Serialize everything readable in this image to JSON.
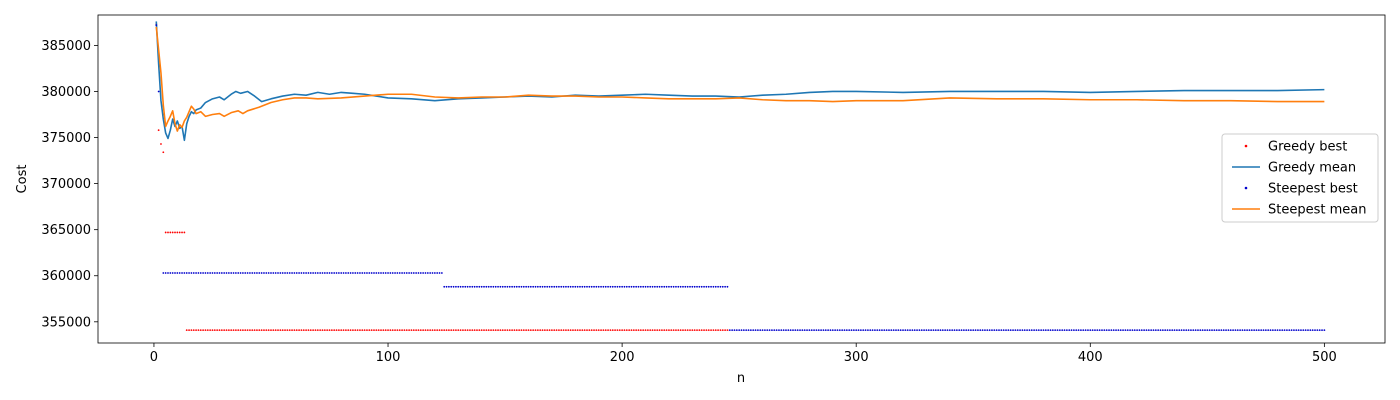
{
  "chart_data": {
    "type": "line",
    "title": "",
    "xlabel": "n",
    "ylabel": "Cost",
    "xlim": [
      -23.9,
      525.9
    ],
    "ylim": [
      352700,
      388300
    ],
    "xticks": [
      0,
      100,
      200,
      300,
      400,
      500
    ],
    "yticks": [
      355000,
      360000,
      365000,
      370000,
      375000,
      380000,
      385000
    ],
    "grid": false,
    "legend_position": "center-right",
    "series": [
      {
        "name": "Greedy best",
        "kind": "points",
        "color": "#ff0000",
        "segments": [
          {
            "x": [
              1,
              1
            ],
            "y": [
              387300,
              387300
            ]
          },
          {
            "x": [
              2,
              2
            ],
            "y": [
              375800,
              375800
            ]
          },
          {
            "x": [
              3,
              3
            ],
            "y": [
              374300,
              374300
            ]
          },
          {
            "x": [
              4,
              4
            ],
            "y": [
              373400,
              373400
            ]
          },
          {
            "x": [
              5,
              13
            ],
            "y": [
              364700,
              364700
            ]
          },
          {
            "x": [
              14,
              245
            ],
            "y": [
              354100,
              354100
            ]
          }
        ]
      },
      {
        "name": "Greedy mean",
        "kind": "line",
        "color": "#1f77b4",
        "points": [
          [
            1,
            387600
          ],
          [
            2,
            383000
          ],
          [
            3,
            379000
          ],
          [
            4,
            377000
          ],
          [
            5,
            375500
          ],
          [
            6,
            374900
          ],
          [
            7,
            375800
          ],
          [
            8,
            377000
          ],
          [
            9,
            376200
          ],
          [
            10,
            376800
          ],
          [
            11,
            376000
          ],
          [
            12,
            376200
          ],
          [
            13,
            374700
          ],
          [
            14,
            376500
          ],
          [
            15,
            377300
          ],
          [
            16,
            377800
          ],
          [
            17,
            377600
          ],
          [
            18,
            378000
          ],
          [
            20,
            378200
          ],
          [
            22,
            378800
          ],
          [
            25,
            379200
          ],
          [
            28,
            379400
          ],
          [
            30,
            379100
          ],
          [
            33,
            379700
          ],
          [
            35,
            380000
          ],
          [
            37,
            379800
          ],
          [
            40,
            380000
          ],
          [
            43,
            379500
          ],
          [
            46,
            378900
          ],
          [
            50,
            379200
          ],
          [
            55,
            379500
          ],
          [
            60,
            379700
          ],
          [
            65,
            379600
          ],
          [
            70,
            379900
          ],
          [
            75,
            379700
          ],
          [
            80,
            379900
          ],
          [
            85,
            379800
          ],
          [
            90,
            379700
          ],
          [
            95,
            379500
          ],
          [
            100,
            379300
          ],
          [
            110,
            379200
          ],
          [
            120,
            379000
          ],
          [
            130,
            379200
          ],
          [
            140,
            379300
          ],
          [
            150,
            379400
          ],
          [
            160,
            379500
          ],
          [
            170,
            379400
          ],
          [
            180,
            379600
          ],
          [
            190,
            379500
          ],
          [
            200,
            379600
          ],
          [
            210,
            379700
          ],
          [
            220,
            379600
          ],
          [
            230,
            379500
          ],
          [
            240,
            379500
          ],
          [
            250,
            379400
          ],
          [
            260,
            379600
          ],
          [
            270,
            379700
          ],
          [
            280,
            379900
          ],
          [
            290,
            380000
          ],
          [
            300,
            380000
          ],
          [
            320,
            379900
          ],
          [
            340,
            380000
          ],
          [
            360,
            380000
          ],
          [
            380,
            380000
          ],
          [
            400,
            379900
          ],
          [
            420,
            380000
          ],
          [
            440,
            380100
          ],
          [
            460,
            380100
          ],
          [
            480,
            380100
          ],
          [
            500,
            380200
          ]
        ]
      },
      {
        "name": "Steepest best",
        "kind": "points",
        "color": "#0000cc",
        "segments": [
          {
            "x": [
              1,
              1
            ],
            "y": [
              387200,
              387200
            ]
          },
          {
            "x": [
              2,
              2
            ],
            "y": [
              380000,
              380000
            ]
          },
          {
            "x": [
              4,
              123
            ],
            "y": [
              360300,
              360300
            ]
          },
          {
            "x": [
              124,
              245
            ],
            "y": [
              358800,
              358800
            ]
          },
          {
            "x": [
              246,
              500
            ],
            "y": [
              354100,
              354100
            ]
          }
        ]
      },
      {
        "name": "Steepest mean",
        "kind": "line",
        "color": "#ff7f0e",
        "points": [
          [
            1,
            387000
          ],
          [
            2,
            384500
          ],
          [
            3,
            382000
          ],
          [
            4,
            378500
          ],
          [
            5,
            376200
          ],
          [
            6,
            376800
          ],
          [
            7,
            377300
          ],
          [
            8,
            377900
          ],
          [
            9,
            376500
          ],
          [
            10,
            375700
          ],
          [
            11,
            376400
          ],
          [
            12,
            376100
          ],
          [
            13,
            376800
          ],
          [
            14,
            377200
          ],
          [
            15,
            377800
          ],
          [
            16,
            378400
          ],
          [
            17,
            378100
          ],
          [
            18,
            377600
          ],
          [
            20,
            377800
          ],
          [
            22,
            377300
          ],
          [
            25,
            377500
          ],
          [
            28,
            377600
          ],
          [
            30,
            377300
          ],
          [
            33,
            377700
          ],
          [
            36,
            377900
          ],
          [
            38,
            377600
          ],
          [
            40,
            377900
          ],
          [
            45,
            378300
          ],
          [
            50,
            378800
          ],
          [
            55,
            379100
          ],
          [
            60,
            379300
          ],
          [
            65,
            379300
          ],
          [
            70,
            379200
          ],
          [
            80,
            379300
          ],
          [
            90,
            379500
          ],
          [
            100,
            379700
          ],
          [
            110,
            379700
          ],
          [
            120,
            379400
          ],
          [
            130,
            379300
          ],
          [
            140,
            379400
          ],
          [
            150,
            379400
          ],
          [
            160,
            379600
          ],
          [
            170,
            379500
          ],
          [
            180,
            379500
          ],
          [
            190,
            379400
          ],
          [
            200,
            379400
          ],
          [
            210,
            379300
          ],
          [
            220,
            379200
          ],
          [
            230,
            379200
          ],
          [
            240,
            379200
          ],
          [
            250,
            379300
          ],
          [
            260,
            379100
          ],
          [
            270,
            379000
          ],
          [
            280,
            379000
          ],
          [
            290,
            378900
          ],
          [
            300,
            379000
          ],
          [
            320,
            379000
          ],
          [
            340,
            379300
          ],
          [
            360,
            379200
          ],
          [
            380,
            379200
          ],
          [
            400,
            379100
          ],
          [
            420,
            379100
          ],
          [
            440,
            379000
          ],
          [
            460,
            379000
          ],
          [
            480,
            378900
          ],
          [
            500,
            378900
          ]
        ]
      }
    ]
  }
}
